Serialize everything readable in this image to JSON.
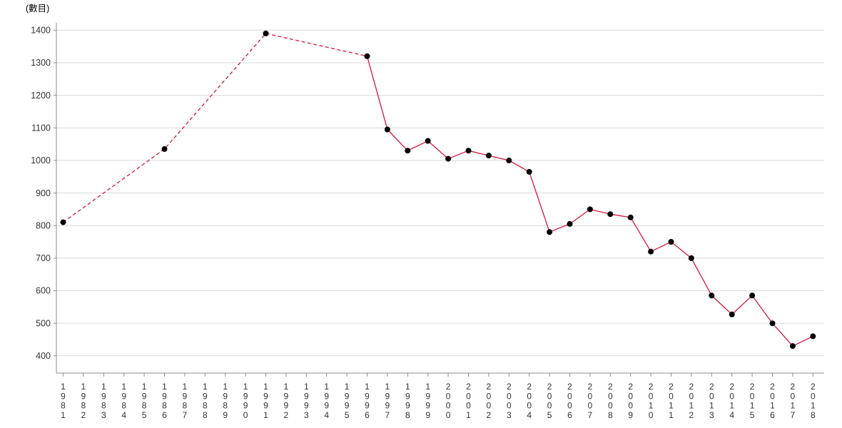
{
  "chart_data": {
    "type": "line",
    "title": "(數目)",
    "xlabel": "",
    "ylabel": "(數目)",
    "ylim": [
      400,
      1400
    ],
    "xlim": [
      1981,
      2018
    ],
    "grid": true,
    "legend": "none",
    "x_tick_label_orientation": "vertical-stacked",
    "y_ticks": [
      400,
      500,
      600,
      700,
      800,
      900,
      1000,
      1100,
      1200,
      1300,
      1400
    ],
    "x_ticks": [
      "1981",
      "1982",
      "1983",
      "1984",
      "1985",
      "1986",
      "1987",
      "1988",
      "1989",
      "1990",
      "1991",
      "1992",
      "1993",
      "1994",
      "1995",
      "1996",
      "1997",
      "1998",
      "1999",
      "2000",
      "2001",
      "2002",
      "2003",
      "2004",
      "2005",
      "2006",
      "2007",
      "2008",
      "2009",
      "2010",
      "2011",
      "2012",
      "2013",
      "2014",
      "2015",
      "2016",
      "2017",
      "2018"
    ],
    "series": [
      {
        "name": "數目",
        "line_color": "#dc143c",
        "marker_color": "#000000",
        "dashed_until_year": 1996,
        "points": [
          {
            "year": 1981,
            "value": 810
          },
          {
            "year": 1986,
            "value": 1035
          },
          {
            "year": 1991,
            "value": 1390
          },
          {
            "year": 1996,
            "value": 1320
          },
          {
            "year": 1997,
            "value": 1095
          },
          {
            "year": 1998,
            "value": 1030
          },
          {
            "year": 1999,
            "value": 1060
          },
          {
            "year": 2000,
            "value": 1005
          },
          {
            "year": 2001,
            "value": 1030
          },
          {
            "year": 2002,
            "value": 1015
          },
          {
            "year": 2003,
            "value": 1000
          },
          {
            "year": 2004,
            "value": 965
          },
          {
            "year": 2005,
            "value": 780
          },
          {
            "year": 2006,
            "value": 805
          },
          {
            "year": 2007,
            "value": 850
          },
          {
            "year": 2008,
            "value": 835
          },
          {
            "year": 2009,
            "value": 825
          },
          {
            "year": 2010,
            "value": 720
          },
          {
            "year": 2011,
            "value": 750
          },
          {
            "year": 2012,
            "value": 700
          },
          {
            "year": 2013,
            "value": 585
          },
          {
            "year": 2014,
            "value": 527
          },
          {
            "year": 2015,
            "value": 585
          },
          {
            "year": 2016,
            "value": 500
          },
          {
            "year": 2017,
            "value": 430
          },
          {
            "year": 2018,
            "value": 460
          }
        ]
      }
    ]
  },
  "colors": {
    "background": "#ffffff",
    "axis": "#8c8c8c",
    "gridline": "#d9d9d9",
    "tick_label": "#333333",
    "title_text": "#000000",
    "line": "#dc143c",
    "marker": "#000000"
  }
}
